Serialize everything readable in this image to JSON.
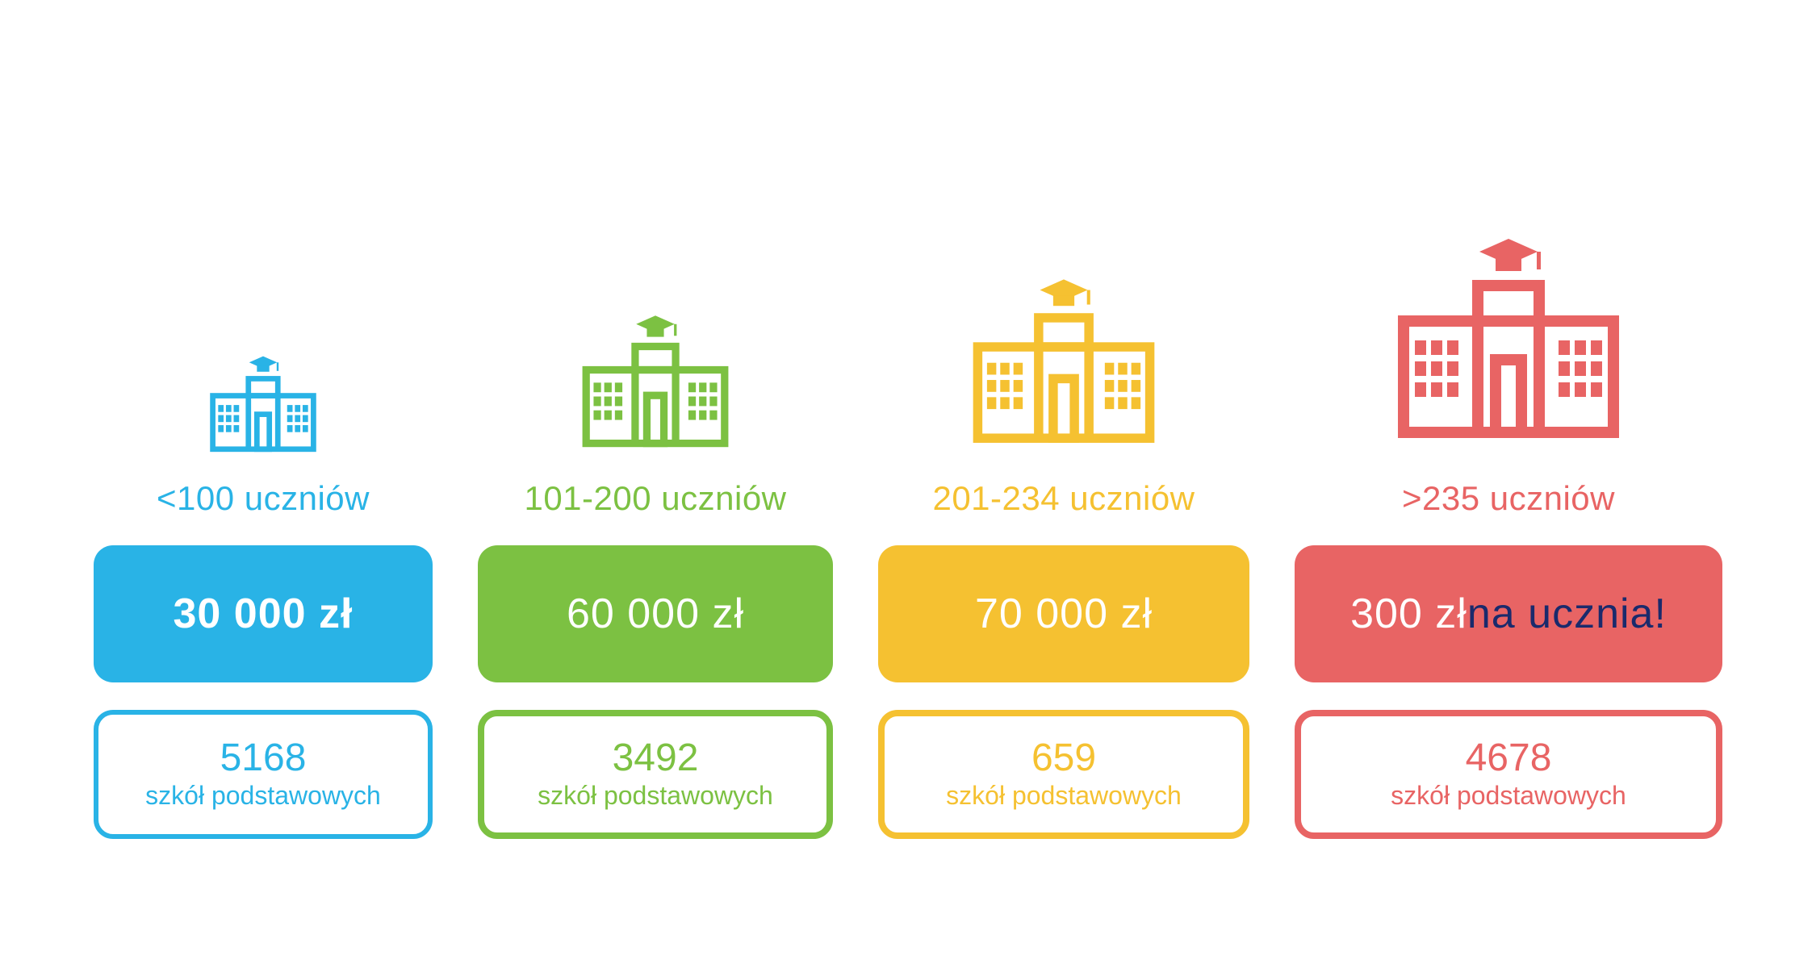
{
  "background_color": "#ffffff",
  "accent_blue_dark": "#1a2a6c",
  "cards": [
    {
      "color": "#29b3e6",
      "range_label": "<100 uczniów",
      "amount_text": "30 000 zł",
      "amount_bold": true,
      "amount_accent": "",
      "count": "5168",
      "count_label": "szkół podstawowych",
      "icon_scale": 0.48,
      "amount_w": 420,
      "amount_h": 170,
      "count_w": 420,
      "count_h": 160,
      "count_border": 6
    },
    {
      "color": "#7cc142",
      "range_label": "101-200 uczniów",
      "amount_text": "60 000 zł",
      "amount_bold": false,
      "amount_accent": "",
      "count": "3492",
      "count_label": "szkół podstawowych",
      "icon_scale": 0.66,
      "amount_w": 440,
      "amount_h": 170,
      "count_w": 440,
      "count_h": 160,
      "count_border": 8
    },
    {
      "color": "#f5c131",
      "range_label": "201-234 uczniów",
      "amount_text": "70 000 zł",
      "amount_bold": false,
      "amount_accent": "",
      "count": "659",
      "count_label": "szkół podstawowych",
      "icon_scale": 0.82,
      "amount_w": 460,
      "amount_h": 170,
      "count_w": 460,
      "count_h": 160,
      "count_border": 8
    },
    {
      "color": "#e86464",
      "range_label": ">235 uczniów",
      "amount_text": "300 zł ",
      "amount_bold": false,
      "amount_accent": "na ucznia!",
      "count": "4678",
      "count_label": "szkół podstawowych",
      "icon_scale": 1.0,
      "amount_w": 530,
      "amount_h": 170,
      "count_w": 530,
      "count_h": 160,
      "count_border": 8
    }
  ]
}
